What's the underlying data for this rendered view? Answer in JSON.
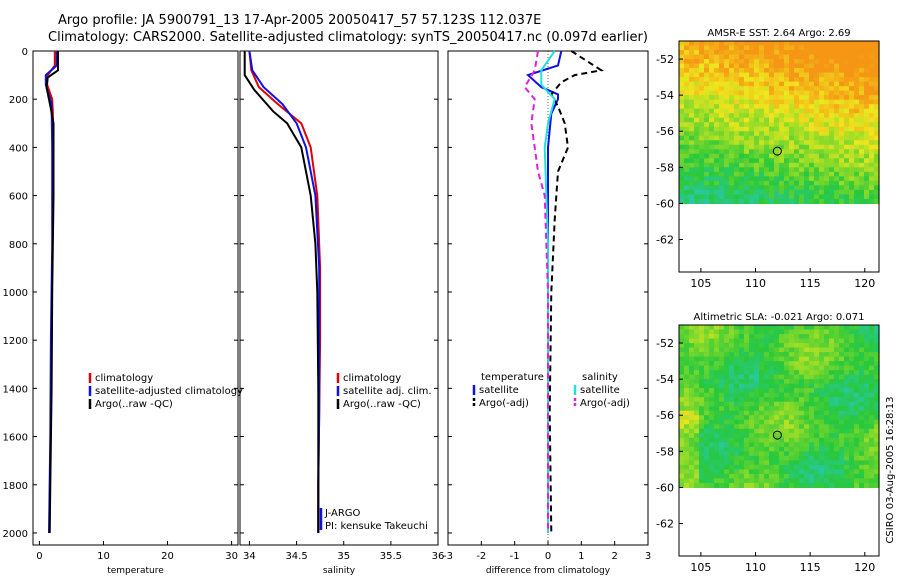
{
  "header": {
    "line1": "Argo profile: JA 5900791_13 17-Apr-2005 20050417_57 57.123S 112.037E",
    "line2": "Climatology: CARS2000. Satellite-adjusted climatology: synTS_20050417.nc (0.097d earlier)"
  },
  "credit": "CSIRO 03-Aug-2005 16:28:13",
  "colors": {
    "clim": "#e00000",
    "sat": "#1010e0",
    "argo": "#000000",
    "sal_sat": "#20e0e0",
    "sal_argo": "#e020e0"
  },
  "chart_data": [
    {
      "type": "line",
      "id": "temperature",
      "xlabel": "temperature",
      "xlim": [
        -1,
        31
      ],
      "ylim": [
        2050,
        0
      ],
      "xticks": [
        0,
        10,
        20,
        30
      ],
      "yticks": [
        0,
        200,
        400,
        600,
        800,
        1000,
        1200,
        1400,
        1600,
        1800,
        2000
      ],
      "legend": [
        "climatology",
        "satellite-adjusted climatology",
        "Argo(..raw -QC)"
      ],
      "series": [
        {
          "name": "climatology",
          "style": "clim",
          "points": [
            [
              2.4,
              0
            ],
            [
              2.4,
              60
            ],
            [
              1.3,
              100
            ],
            [
              1.2,
              140
            ],
            [
              2.0,
              200
            ],
            [
              2.1,
              260
            ],
            [
              2.1,
              400
            ]
          ]
        },
        {
          "name": "satellite-adjusted climatology",
          "style": "sat",
          "points": [
            [
              2.7,
              0
            ],
            [
              2.7,
              60
            ],
            [
              1.0,
              100
            ],
            [
              1.0,
              140
            ],
            [
              1.9,
              220
            ],
            [
              2.0,
              400
            ],
            [
              2.0,
              800
            ],
            [
              1.8,
              1200
            ],
            [
              1.7,
              1600
            ],
            [
              1.5,
              2000
            ]
          ]
        },
        {
          "name": "Argo(..raw -QC)",
          "style": "argo",
          "points": [
            [
              2.9,
              0
            ],
            [
              2.9,
              80
            ],
            [
              1.3,
              110
            ],
            [
              1.1,
              150
            ],
            [
              1.8,
              240
            ],
            [
              2.2,
              300
            ],
            [
              2.2,
              600
            ],
            [
              2.0,
              1000
            ],
            [
              1.9,
              1400
            ],
            [
              1.7,
              1800
            ],
            [
              1.6,
              2000
            ]
          ]
        }
      ]
    },
    {
      "type": "line",
      "id": "salinity",
      "xlabel": "salinity",
      "xlim": [
        33.9,
        36.0
      ],
      "ylim": [
        2050,
        0
      ],
      "xticks": [
        34,
        34.5,
        35,
        35.5,
        36
      ],
      "legend": [
        "climatology",
        "satellite adj. clim.",
        "Argo(..raw -QC)"
      ],
      "annotations": [
        "J-ARGO",
        "PI: kensuke Takeuchi"
      ],
      "series": [
        {
          "name": "climatology",
          "style": "clim",
          "points": [
            [
              34.0,
              0
            ],
            [
              34.02,
              80
            ],
            [
              34.1,
              150
            ],
            [
              34.3,
              220
            ],
            [
              34.55,
              300
            ],
            [
              34.65,
              400
            ],
            [
              34.72,
              600
            ],
            [
              34.75,
              900
            ],
            [
              34.75,
              1200
            ],
            [
              34.74,
              1500
            ],
            [
              34.73,
              1800
            ],
            [
              34.73,
              2000
            ]
          ]
        },
        {
          "name": "satellite adj. clim.",
          "style": "sat",
          "points": [
            [
              34.0,
              0
            ],
            [
              34.03,
              80
            ],
            [
              34.15,
              150
            ],
            [
              34.35,
              220
            ],
            [
              34.5,
              300
            ],
            [
              34.6,
              400
            ],
            [
              34.7,
              600
            ],
            [
              34.74,
              900
            ],
            [
              34.74,
              1200
            ],
            [
              34.74,
              1500
            ],
            [
              34.73,
              1800
            ],
            [
              34.73,
              2000
            ]
          ]
        },
        {
          "name": "Argo(..raw -QC)",
          "style": "argo",
          "points": [
            [
              33.95,
              0
            ],
            [
              33.95,
              100
            ],
            [
              34.05,
              160
            ],
            [
              34.25,
              250
            ],
            [
              34.4,
              300
            ],
            [
              34.55,
              400
            ],
            [
              34.65,
              600
            ],
            [
              34.7,
              800
            ],
            [
              34.72,
              1000
            ],
            [
              34.73,
              1400
            ],
            [
              34.73,
              1800
            ],
            [
              34.73,
              2000
            ]
          ]
        }
      ]
    },
    {
      "type": "line",
      "id": "difference",
      "xlabel": "difference from climatology",
      "xlim": [
        -3,
        3
      ],
      "ylim": [
        2050,
        0
      ],
      "xticks": [
        -3,
        -2,
        -1,
        0,
        1,
        2,
        3
      ],
      "legend_left": [
        "temperature",
        "satellite",
        "Argo(-adj)"
      ],
      "legend_right": [
        "salinity",
        "satellite",
        "Argo(-adj)"
      ],
      "series": [
        {
          "name": "temperature satellite",
          "style": "sat",
          "points": [
            [
              0.4,
              0
            ],
            [
              0.3,
              60
            ],
            [
              -0.6,
              100
            ],
            [
              -0.2,
              150
            ],
            [
              0.3,
              180
            ],
            [
              0.3,
              200
            ],
            [
              0.1,
              260
            ],
            [
              0,
              400
            ],
            [
              0,
              800
            ],
            [
              0,
              1200
            ],
            [
              0,
              1600
            ],
            [
              0,
              2000
            ]
          ]
        },
        {
          "name": "temperature Argo(-adj)",
          "style": "argo",
          "dash": true,
          "points": [
            [
              0.7,
              0
            ],
            [
              1.6,
              80
            ],
            [
              0.8,
              100
            ],
            [
              0.4,
              130
            ],
            [
              0.1,
              180
            ],
            [
              0.3,
              230
            ],
            [
              0.5,
              300
            ],
            [
              0.6,
              400
            ],
            [
              0.3,
              500
            ],
            [
              0.2,
              700
            ],
            [
              0.1,
              1000
            ],
            [
              0.05,
              1500
            ],
            [
              0.1,
              2000
            ]
          ]
        },
        {
          "name": "salinity satellite",
          "style": "sal_sat",
          "points": [
            [
              0.2,
              0
            ],
            [
              -0.2,
              80
            ],
            [
              -0.2,
              140
            ],
            [
              0.2,
              200
            ],
            [
              0,
              300
            ],
            [
              -0.1,
              400
            ],
            [
              0,
              800
            ],
            [
              0,
              1200
            ],
            [
              0,
              1600
            ],
            [
              0,
              2000
            ]
          ]
        },
        {
          "name": "salinity Argo(-adj)",
          "style": "sal_argo",
          "dash": true,
          "points": [
            [
              -0.3,
              0
            ],
            [
              -0.4,
              80
            ],
            [
              -0.7,
              150
            ],
            [
              -0.4,
              200
            ],
            [
              -0.5,
              300
            ],
            [
              -0.4,
              400
            ],
            [
              -0.3,
              500
            ],
            [
              -0.1,
              600
            ],
            [
              -0.05,
              800
            ],
            [
              0,
              1000
            ],
            [
              0,
              1400
            ],
            [
              0,
              2000
            ]
          ]
        }
      ]
    },
    {
      "type": "heatmap",
      "id": "sst-map",
      "title": "AMSR-E SST: 2.64 Argo: 2.69",
      "xlim": [
        103,
        121.3
      ],
      "ylim": [
        -63.8,
        -51
      ],
      "xticks": [
        105,
        110,
        115,
        120
      ],
      "yticks": [
        -52,
        -54,
        -56,
        -58,
        -60,
        -62
      ],
      "data_ymin": -60,
      "marker": [
        112.0,
        -57.1
      ]
    },
    {
      "type": "heatmap",
      "id": "sla-map",
      "title": "Altimetric SLA: -0.021 Argo: 0.071",
      "xlim": [
        103,
        121.3
      ],
      "ylim": [
        -63.8,
        -51
      ],
      "xticks": [
        105,
        110,
        115,
        120
      ],
      "yticks": [
        -52,
        -54,
        -56,
        -58,
        -60,
        -62
      ],
      "data_ymin": -60,
      "marker": [
        112.0,
        -57.1
      ]
    }
  ]
}
